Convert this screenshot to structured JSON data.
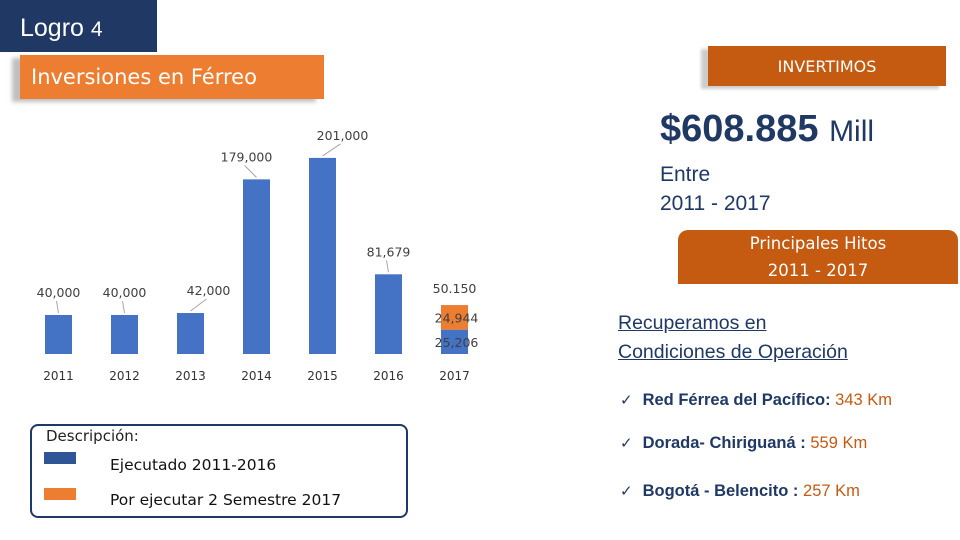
{
  "header": {
    "logro_label": "Logro",
    "logro_number": "4",
    "section_title": "Inversiones en Férreo",
    "invertimos_label": "INVERTIMOS"
  },
  "summary": {
    "amount": "$608.885",
    "amount_unit": "Mill",
    "period_line1": "Entre",
    "period_line2": "2011 - 2017"
  },
  "hitos": {
    "title_line1": "Principales Hitos",
    "title_line2": "2011 - 2017",
    "subtitle_line1": "Recuperamos en",
    "subtitle_line2": "Condiciones de Operación",
    "check_glyph": "✓",
    "items": [
      {
        "name": "Red Férrea del Pacífico:",
        "value": "343 Km"
      },
      {
        "name": "Dorada- Chiriguaná :",
        "value": "559 Km"
      },
      {
        "name": "Bogotá - Belencito :",
        "value": "257 Km"
      }
    ]
  },
  "legend": {
    "title": "Descripción:",
    "items": [
      {
        "label": "Ejecutado 2011-2016",
        "color": "#2f5597"
      },
      {
        "label": "Por ejecutar 2 Semestre 2017",
        "color": "#ed7d31"
      }
    ]
  },
  "chart_data": {
    "type": "bar",
    "stacked": true,
    "categories": [
      "2011",
      "2012",
      "2013",
      "2014",
      "2015",
      "2016",
      "2017"
    ],
    "series": [
      {
        "name": "Ejecutado 2011-2016",
        "color": "#4472c4",
        "values": [
          40000,
          40000,
          42000,
          179000,
          201000,
          81679,
          24944
        ]
      },
      {
        "name": "Por ejecutar 2 Semestre 2017",
        "color": "#ed7d31",
        "values": [
          0,
          0,
          0,
          0,
          0,
          0,
          25206
        ]
      }
    ],
    "data_labels": [
      "40,000",
      "40,000",
      "42,000",
      "179,000",
      "201,000",
      "81,679",
      "24,944",
      "25,206"
    ],
    "extra_label": "50.150",
    "ylim": [
      0,
      205000
    ],
    "title": "",
    "xlabel": "",
    "ylabel": "",
    "grid": false
  }
}
